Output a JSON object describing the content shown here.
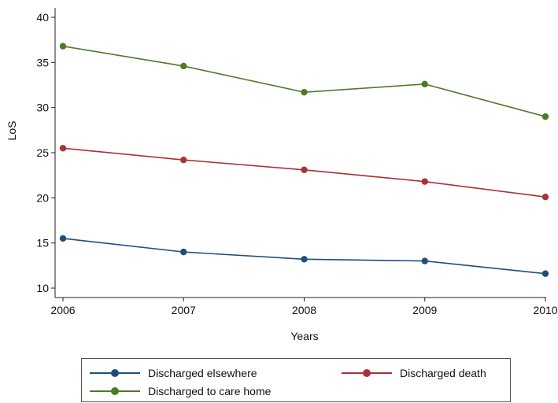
{
  "chart_data": {
    "type": "line",
    "categories": [
      "2006",
      "2007",
      "2008",
      "2009",
      "2010"
    ],
    "x": [
      2006,
      2007,
      2008,
      2009,
      2010
    ],
    "xlabel": "Years",
    "ylabel": "LoS",
    "ylim": [
      10,
      40
    ],
    "yticks": [
      10,
      15,
      20,
      25,
      30,
      35,
      40
    ],
    "grid": false,
    "legend_position": "bottom",
    "series": [
      {
        "name": "Discharged elsewhere",
        "color": "#1f4e79",
        "values": [
          15.5,
          14.0,
          13.2,
          13.0,
          11.6
        ]
      },
      {
        "name": "Discharged death",
        "color": "#a83236",
        "values": [
          25.5,
          24.2,
          23.1,
          21.8,
          20.1
        ]
      },
      {
        "name": "Discharged to care home",
        "color": "#4f7a28",
        "values": [
          36.8,
          34.6,
          31.7,
          32.6,
          29.0
        ]
      }
    ]
  }
}
